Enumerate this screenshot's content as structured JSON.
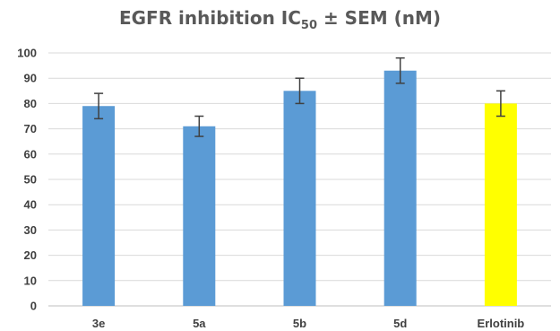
{
  "chart_data": {
    "type": "bar",
    "title": {
      "main": "EGFR inhibition IC",
      "subscript": "50",
      "rest": " ± SEM (nM)"
    },
    "categories": [
      "3e",
      "5a",
      "5b",
      "5d",
      "Erlotinib"
    ],
    "values": [
      79,
      71,
      85,
      93,
      80
    ],
    "errors": [
      5,
      4,
      5,
      5,
      5
    ],
    "colors": [
      "#5b9bd5",
      "#5b9bd5",
      "#5b9bd5",
      "#5b9bd5",
      "#ffff00"
    ],
    "ylim": [
      0,
      100
    ],
    "yticks": [
      "0",
      "10",
      "20",
      "30",
      "40",
      "50",
      "60",
      "70",
      "80",
      "90",
      "100"
    ],
    "xlabel": "",
    "ylabel": "",
    "grid": true,
    "legend": "none"
  }
}
